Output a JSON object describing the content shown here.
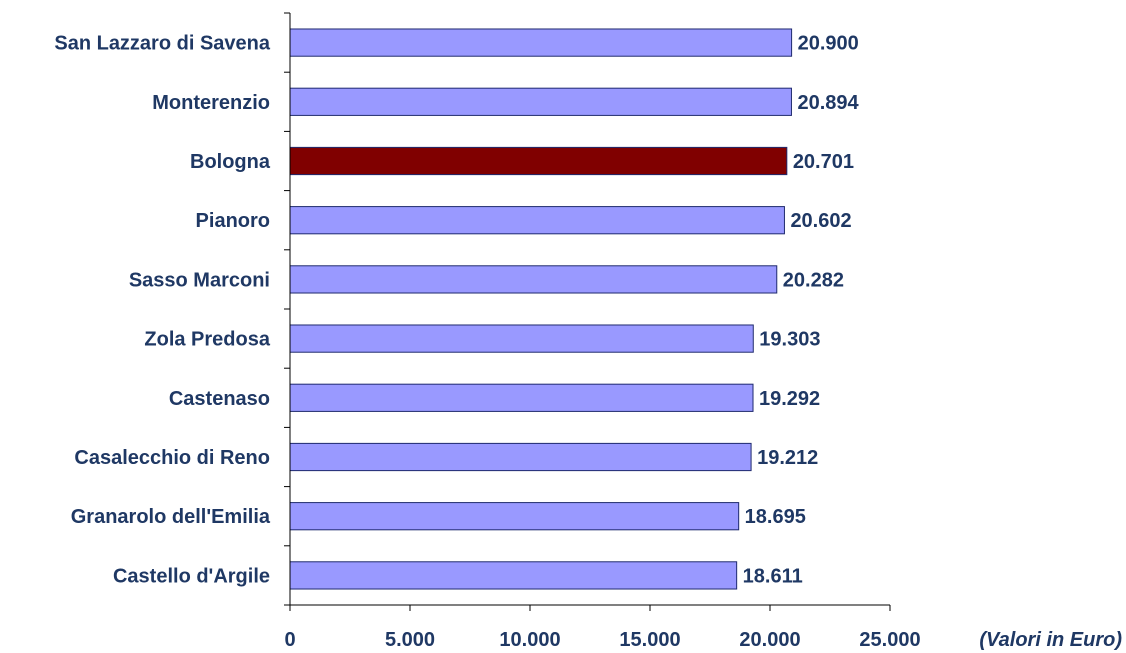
{
  "chart_data": {
    "type": "bar",
    "orientation": "horizontal",
    "categories": [
      "San Lazzaro di Savena",
      "Monterenzio",
      "Bologna",
      "Pianoro",
      "Sasso Marconi",
      "Zola Predosa",
      "Castenaso",
      "Casalecchio di Reno",
      "Granarolo dell'Emilia",
      "Castello d'Argile"
    ],
    "values": [
      20900,
      20894,
      20701,
      20602,
      20282,
      19303,
      19292,
      19212,
      18695,
      18611
    ],
    "value_labels": [
      "20.900",
      "20.894",
      "20.701",
      "20.602",
      "20.282",
      "19.303",
      "19.292",
      "19.212",
      "18.695",
      "18.611"
    ],
    "highlight_category": "Bologna",
    "xlim": [
      0,
      25000
    ],
    "x_ticks": [
      0,
      5000,
      10000,
      15000,
      20000,
      25000
    ],
    "x_tick_labels": [
      "0",
      "5.000",
      "10.000",
      "15.000",
      "20.000",
      "25.000"
    ],
    "x_unit_label": "(Valori in Euro)",
    "title": "",
    "xlabel": "",
    "ylabel": "",
    "grid": false,
    "legend": "none",
    "colors": {
      "bar": "#9999ff",
      "highlight": "#800000",
      "text": "#1f3864"
    }
  }
}
